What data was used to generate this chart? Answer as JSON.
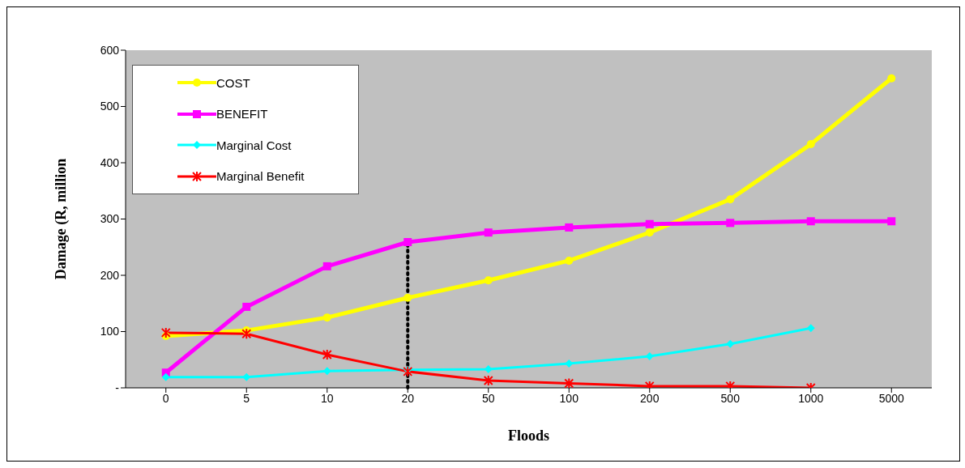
{
  "chart_data": {
    "type": "line",
    "xlabel": "Floods",
    "ylabel": "Damage (R, million",
    "categories": [
      "0",
      "5",
      "10",
      "20",
      "50",
      "100",
      "200",
      "500",
      "1000",
      "5000"
    ],
    "series": [
      {
        "name": "COST",
        "color": "#ffff00",
        "marker": "circle",
        "values": [
          92,
          102,
          125,
          160,
          191,
          226,
          276,
          335,
          433,
          550
        ]
      },
      {
        "name": "BENEFIT",
        "color": "#ff00ff",
        "marker": "square",
        "values": [
          27,
          144,
          216,
          259,
          276,
          285,
          291,
          293,
          296,
          296
        ]
      },
      {
        "name": "Marginal Cost",
        "color": "#00ffff",
        "marker": "diamond",
        "values": [
          19,
          19,
          30,
          32,
          33,
          43,
          56,
          78,
          106,
          null
        ]
      },
      {
        "name": "Marginal Benefit",
        "color": "#ff0000",
        "marker": "cross",
        "values": [
          98,
          96,
          59,
          29,
          13,
          8,
          3,
          3,
          0,
          null
        ]
      }
    ],
    "ylim": [
      0,
      600
    ],
    "yticks": [
      {
        "value": 0,
        "label": "-"
      },
      100,
      200,
      300,
      400,
      500,
      600
    ],
    "ref_lines": [
      {
        "axis": "x",
        "value": "20",
        "color": "#000000",
        "line_style": "dotted"
      }
    ],
    "legend": "top left",
    "grid": false
  }
}
